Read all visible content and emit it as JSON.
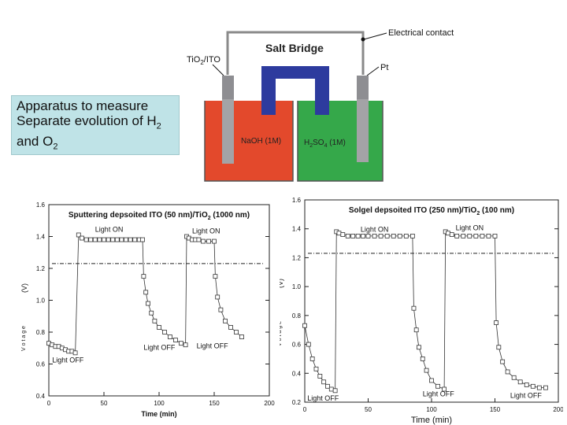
{
  "apparatus": {
    "caption_line1": "Apparatus to measure",
    "caption_line2": "Separate evolution of H",
    "caption_h_sub": "2",
    "caption_line3": "and O",
    "caption_o_sub": "2",
    "salt_bridge": "Salt Bridge",
    "electrical_contact": "Electrical contact",
    "pt_label": "Pt",
    "electrode_label_main": "TiO",
    "electrode_label_sub": "2",
    "electrode_label_rest": "/ITO",
    "left_solution": "NaOH (1M)",
    "right_solution_main": "H",
    "right_solution_sub1": "2",
    "right_solution_mid": "SO",
    "right_solution_sub2": "4",
    "right_solution_rest": " (1M)",
    "colors": {
      "left_liquid": "#e3492c",
      "right_liquid": "#35a84a",
      "bridge": "#2d3b9e",
      "electrode": "#a3a3a6"
    }
  },
  "chart_data": [
    {
      "type": "line",
      "title_main": "Sputtering depsoited  ITO (50 nm)/TiO",
      "title_sub": "2",
      "title_rest": " (1000 nm)",
      "xlabel": "Time (min)",
      "ylabel_unit": "(V)",
      "ylabel_garbled": "V o t a g e",
      "xlim": [
        0,
        200
      ],
      "ylim": [
        0.4,
        1.6
      ],
      "xticks": [
        "0",
        "50",
        "100",
        "150",
        "200"
      ],
      "yticks": [
        "0.4",
        "0.6",
        "0.8",
        "1.0",
        "1.2",
        "1.4",
        "1.6"
      ],
      "reference_line": 1.23,
      "series": [
        {
          "x": [
            0,
            3,
            6,
            9,
            12,
            15,
            18,
            21,
            24,
            27,
            30,
            34,
            38,
            42,
            46,
            50,
            54,
            58,
            62,
            66,
            70,
            74,
            78,
            82,
            85,
            86,
            88,
            90,
            93,
            96,
            100,
            105,
            110,
            115,
            120,
            124,
            125,
            127,
            130,
            133,
            136,
            140,
            145,
            150,
            151,
            153,
            156,
            160,
            165,
            170,
            175
          ],
          "y": [
            0.73,
            0.72,
            0.71,
            0.71,
            0.7,
            0.69,
            0.68,
            0.68,
            0.67,
            1.41,
            1.39,
            1.38,
            1.38,
            1.38,
            1.38,
            1.38,
            1.38,
            1.38,
            1.38,
            1.38,
            1.38,
            1.38,
            1.38,
            1.38,
            1.38,
            1.15,
            1.05,
            0.98,
            0.92,
            0.87,
            0.83,
            0.8,
            0.77,
            0.75,
            0.73,
            0.72,
            1.4,
            1.39,
            1.38,
            1.38,
            1.38,
            1.37,
            1.37,
            1.37,
            1.15,
            1.02,
            0.94,
            0.87,
            0.83,
            0.8,
            0.77
          ]
        }
      ],
      "annotations": [
        {
          "text": "Light ON",
          "x": 42,
          "y": 1.43
        },
        {
          "text": "Light ON",
          "x": 130,
          "y": 1.42
        },
        {
          "text": "Light OFF",
          "x": 3,
          "y": 0.61
        },
        {
          "text": "Light OFF",
          "x": 86,
          "y": 0.69
        },
        {
          "text": "Light OFF",
          "x": 134,
          "y": 0.7
        }
      ]
    },
    {
      "type": "line",
      "title_main": "Solgel depsoited  ITO (250 nm)/TiO",
      "title_sub": "2",
      "title_rest": " (100 nm)",
      "xlabel": "Time (min)",
      "ylabel_unit": "(V)",
      "ylabel_garbled": "V o t a g e",
      "xlim": [
        0,
        200
      ],
      "ylim": [
        0.2,
        1.6
      ],
      "xticks": [
        "0",
        "50",
        "100",
        "150",
        "200"
      ],
      "yticks": [
        "0.2",
        "0.4",
        "0.6",
        "0.8",
        "1.0",
        "1.2",
        "1.4",
        "1.6"
      ],
      "reference_line": 1.23,
      "series": [
        {
          "x": [
            0,
            3,
            6,
            9,
            12,
            15,
            18,
            21,
            24,
            25,
            27,
            30,
            34,
            38,
            42,
            46,
            50,
            55,
            60,
            65,
            70,
            75,
            80,
            85,
            86,
            88,
            90,
            93,
            96,
            100,
            105,
            110,
            111,
            113,
            116,
            120,
            125,
            130,
            135,
            140,
            145,
            150,
            151,
            153,
            156,
            160,
            165,
            170,
            175,
            180,
            185,
            190
          ],
          "y": [
            0.73,
            0.6,
            0.5,
            0.43,
            0.38,
            0.34,
            0.31,
            0.29,
            0.28,
            1.38,
            1.37,
            1.36,
            1.35,
            1.35,
            1.35,
            1.35,
            1.35,
            1.35,
            1.35,
            1.35,
            1.35,
            1.35,
            1.35,
            1.35,
            0.85,
            0.7,
            0.58,
            0.5,
            0.42,
            0.35,
            0.31,
            0.29,
            1.38,
            1.37,
            1.36,
            1.35,
            1.35,
            1.35,
            1.35,
            1.35,
            1.35,
            1.35,
            0.75,
            0.58,
            0.48,
            0.41,
            0.37,
            0.34,
            0.32,
            0.31,
            0.3,
            0.3
          ]
        }
      ],
      "annotations": [
        {
          "text": "Light ON",
          "x": 44,
          "y": 1.38
        },
        {
          "text": "Light ON",
          "x": 119,
          "y": 1.39
        },
        {
          "text": "Light OFF",
          "x": 2,
          "y": 0.21
        },
        {
          "text": "Light OFF",
          "x": 93,
          "y": 0.24
        },
        {
          "text": "Light OFF",
          "x": 162,
          "y": 0.23
        }
      ]
    }
  ]
}
